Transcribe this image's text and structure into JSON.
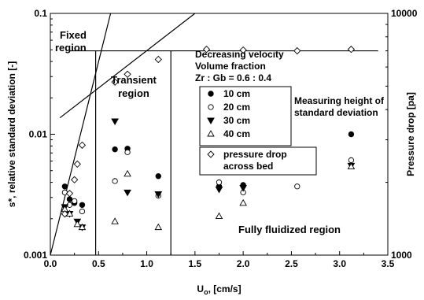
{
  "chart_data": {
    "type": "scatter",
    "xlabel_main": "U",
    "xlabel_sub": "o",
    "xlabel_tail": ", [cm/s]",
    "ylabel_left": "s*, relative standard deviation [-]",
    "ylabel_right": "Pressure drop [pa]",
    "xlim": [
      0,
      3.5
    ],
    "ylim_left": [
      0.001,
      0.1
    ],
    "ylim_right": [
      1000,
      10000
    ],
    "y_left_scale": "log",
    "y_right_scale": "log",
    "x_ticks": [
      "0.0",
      "0.5",
      "1.0",
      "1.5",
      "2.0",
      "2.5",
      "3.0",
      "3.5"
    ],
    "x_tick_values": [
      0,
      0.5,
      1.0,
      1.5,
      2.0,
      2.5,
      3.0,
      3.5
    ],
    "y_left_ticks": [
      "0.001",
      "0.01",
      "0.1"
    ],
    "y_left_tick_values": [
      0.001,
      0.01,
      0.1
    ],
    "y_right_ticks": [
      "1000",
      "10000"
    ],
    "y_right_tick_values": [
      1000,
      10000
    ],
    "grid": false,
    "legend_placement": "center-right",
    "annotations": {
      "fixed_region": [
        "Fixed",
        "region"
      ],
      "transient_region": [
        "Transient",
        "region"
      ],
      "info": [
        "Decreasing velocity",
        "Volume fraction",
        "Zr : Gb = 0.6 : 0.4"
      ],
      "measuring": [
        "Measuring height of",
        "standard deviation"
      ],
      "fully": "Fully fluidized region"
    },
    "series": [
      {
        "name": "10  cm",
        "marker": "filled-circle",
        "axis": "left",
        "points": [
          [
            0.15,
            0.0037
          ],
          [
            0.2,
            0.0029
          ],
          [
            0.25,
            0.0027
          ],
          [
            0.33,
            0.0026
          ],
          [
            0.67,
            0.0075
          ],
          [
            0.8,
            0.0076
          ],
          [
            1.12,
            0.0045
          ],
          [
            1.75,
            0.0037
          ],
          [
            2.0,
            0.0038
          ],
          [
            3.12,
            0.01
          ]
        ]
      },
      {
        "name": "20  cm",
        "marker": "open-circle",
        "axis": "left",
        "points": [
          [
            0.15,
            0.0033
          ],
          [
            0.2,
            0.0026
          ],
          [
            0.25,
            0.0028
          ],
          [
            0.33,
            0.0023
          ],
          [
            0.67,
            0.0041
          ],
          [
            0.8,
            0.0071
          ],
          [
            1.12,
            0.0031
          ],
          [
            1.75,
            0.004
          ],
          [
            2.0,
            0.0033
          ],
          [
            2.56,
            0.0037
          ],
          [
            3.12,
            0.0061
          ]
        ]
      },
      {
        "name": "30  cm",
        "marker": "filled-triangle-down",
        "axis": "left",
        "points": [
          [
            0.15,
            0.0025
          ],
          [
            0.2,
            0.0022
          ],
          [
            0.28,
            0.0019
          ],
          [
            0.33,
            0.0017
          ],
          [
            0.67,
            0.0128
          ],
          [
            0.8,
            0.0033
          ],
          [
            1.12,
            0.0032
          ],
          [
            1.75,
            0.0035
          ],
          [
            2.0,
            0.0036
          ],
          [
            3.12,
            0.0055
          ]
        ]
      },
      {
        "name": "40  cm",
        "marker": "open-triangle-up",
        "axis": "left",
        "points": [
          [
            0.15,
            0.0024
          ],
          [
            0.2,
            0.0022
          ],
          [
            0.28,
            0.0018
          ],
          [
            0.33,
            0.0017
          ],
          [
            0.67,
            0.0019
          ],
          [
            0.8,
            0.0047
          ],
          [
            1.12,
            0.0017
          ],
          [
            1.75,
            0.0021
          ],
          [
            2.0,
            0.0027
          ],
          [
            3.12,
            0.0054
          ]
        ]
      },
      {
        "name": "pressure drop across bed",
        "name_lines": [
          "pressure drop",
          "across bed"
        ],
        "marker": "open-diamond",
        "axis": "right",
        "points": [
          [
            0.15,
            1480
          ],
          [
            0.2,
            1800
          ],
          [
            0.25,
            2050
          ],
          [
            0.28,
            2380
          ],
          [
            0.33,
            2850
          ],
          [
            0.67,
            5200
          ],
          [
            0.8,
            5600
          ],
          [
            1.12,
            6450
          ],
          [
            1.62,
            7100
          ],
          [
            2.0,
            7050
          ],
          [
            2.56,
            7000
          ],
          [
            3.12,
            7100
          ]
        ]
      }
    ],
    "lines": {
      "fixed_fit": [
        [
          0.0,
          1000
        ],
        [
          0.625,
          10000
        ]
      ],
      "transient_fit": [
        [
          0.1,
          3700
        ],
        [
          1.5,
          10000
        ]
      ],
      "plateau": [
        [
          0.2,
          7000
        ],
        [
          3.4,
          7000
        ]
      ],
      "vlines_x": [
        0.47,
        1.25
      ]
    }
  }
}
